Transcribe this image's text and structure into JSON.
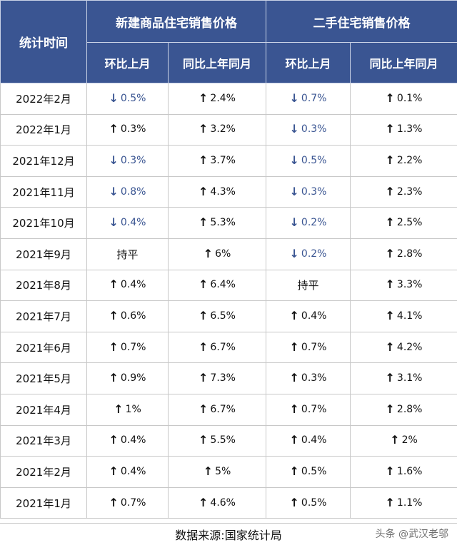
{
  "header": {
    "period_label": "统计时间",
    "new_group": "新建商品住宅销售价格",
    "used_group": "二手住宅销售价格",
    "mom": "环比上月",
    "yoy": "同比上年同月"
  },
  "rows": [
    {
      "date": "2022年2月",
      "new_mom": {
        "dir": "down",
        "v": "0.5%"
      },
      "new_yoy": {
        "dir": "up",
        "v": "2.4%"
      },
      "used_mom": {
        "dir": "down",
        "v": "0.7%"
      },
      "used_yoy": {
        "dir": "up",
        "v": "0.1%"
      }
    },
    {
      "date": "2022年1月",
      "new_mom": {
        "dir": "up",
        "v": "0.3%"
      },
      "new_yoy": {
        "dir": "up",
        "v": "3.2%"
      },
      "used_mom": {
        "dir": "down",
        "v": "0.3%"
      },
      "used_yoy": {
        "dir": "up",
        "v": "1.3%"
      }
    },
    {
      "date": "2021年12月",
      "new_mom": {
        "dir": "down",
        "v": "0.3%"
      },
      "new_yoy": {
        "dir": "up",
        "v": "3.7%"
      },
      "used_mom": {
        "dir": "down",
        "v": "0.5%"
      },
      "used_yoy": {
        "dir": "up",
        "v": "2.2%"
      }
    },
    {
      "date": "2021年11月",
      "new_mom": {
        "dir": "down",
        "v": "0.8%"
      },
      "new_yoy": {
        "dir": "up",
        "v": "4.3%"
      },
      "used_mom": {
        "dir": "down",
        "v": "0.3%"
      },
      "used_yoy": {
        "dir": "up",
        "v": "2.3%"
      }
    },
    {
      "date": "2021年10月",
      "new_mom": {
        "dir": "down",
        "v": "0.4%"
      },
      "new_yoy": {
        "dir": "up",
        "v": "5.3%"
      },
      "used_mom": {
        "dir": "down",
        "v": "0.2%"
      },
      "used_yoy": {
        "dir": "up",
        "v": "2.5%"
      }
    },
    {
      "date": "2021年9月",
      "new_mom": {
        "dir": "flat",
        "v": "持平"
      },
      "new_yoy": {
        "dir": "up",
        "v": "6%"
      },
      "used_mom": {
        "dir": "down",
        "v": "0.2%"
      },
      "used_yoy": {
        "dir": "up",
        "v": "2.8%"
      }
    },
    {
      "date": "2021年8月",
      "new_mom": {
        "dir": "up",
        "v": "0.4%"
      },
      "new_yoy": {
        "dir": "up",
        "v": "6.4%"
      },
      "used_mom": {
        "dir": "flat",
        "v": "持平"
      },
      "used_yoy": {
        "dir": "up",
        "v": "3.3%"
      }
    },
    {
      "date": "2021年7月",
      "new_mom": {
        "dir": "up",
        "v": "0.6%"
      },
      "new_yoy": {
        "dir": "up",
        "v": "6.5%"
      },
      "used_mom": {
        "dir": "up",
        "v": "0.4%"
      },
      "used_yoy": {
        "dir": "up",
        "v": "4.1%"
      }
    },
    {
      "date": "2021年6月",
      "new_mom": {
        "dir": "up",
        "v": "0.7%"
      },
      "new_yoy": {
        "dir": "up",
        "v": "6.7%"
      },
      "used_mom": {
        "dir": "up",
        "v": "0.7%"
      },
      "used_yoy": {
        "dir": "up",
        "v": "4.2%"
      }
    },
    {
      "date": "2021年5月",
      "new_mom": {
        "dir": "up",
        "v": "0.9%"
      },
      "new_yoy": {
        "dir": "up",
        "v": "7.3%"
      },
      "used_mom": {
        "dir": "up",
        "v": "0.3%"
      },
      "used_yoy": {
        "dir": "up",
        "v": "3.1%"
      }
    },
    {
      "date": "2021年4月",
      "new_mom": {
        "dir": "up",
        "v": "1%"
      },
      "new_yoy": {
        "dir": "up",
        "v": "6.7%"
      },
      "used_mom": {
        "dir": "up",
        "v": "0.7%"
      },
      "used_yoy": {
        "dir": "up",
        "v": "2.8%"
      }
    },
    {
      "date": "2021年3月",
      "new_mom": {
        "dir": "up",
        "v": "0.4%"
      },
      "new_yoy": {
        "dir": "up",
        "v": "5.5%"
      },
      "used_mom": {
        "dir": "up",
        "v": "0.4%"
      },
      "used_yoy": {
        "dir": "up",
        "v": "2%"
      }
    },
    {
      "date": "2021年2月",
      "new_mom": {
        "dir": "up",
        "v": "0.4%"
      },
      "new_yoy": {
        "dir": "up",
        "v": "5%"
      },
      "used_mom": {
        "dir": "up",
        "v": "0.5%"
      },
      "used_yoy": {
        "dir": "up",
        "v": "1.6%"
      }
    },
    {
      "date": "2021年1月",
      "new_mom": {
        "dir": "up",
        "v": "0.7%"
      },
      "new_yoy": {
        "dir": "up",
        "v": "4.6%"
      },
      "used_mom": {
        "dir": "up",
        "v": "0.5%"
      },
      "used_yoy": {
        "dir": "up",
        "v": "1.1%"
      }
    }
  ],
  "footer": "数据来源:国家统计局",
  "watermark": "头条 @武汉老邬",
  "colors": {
    "header_bg": "#3a5592",
    "down": "#3a5592",
    "up": "#111111"
  },
  "icons": {
    "up": "up-arrow-icon",
    "down": "down-arrow-icon"
  }
}
